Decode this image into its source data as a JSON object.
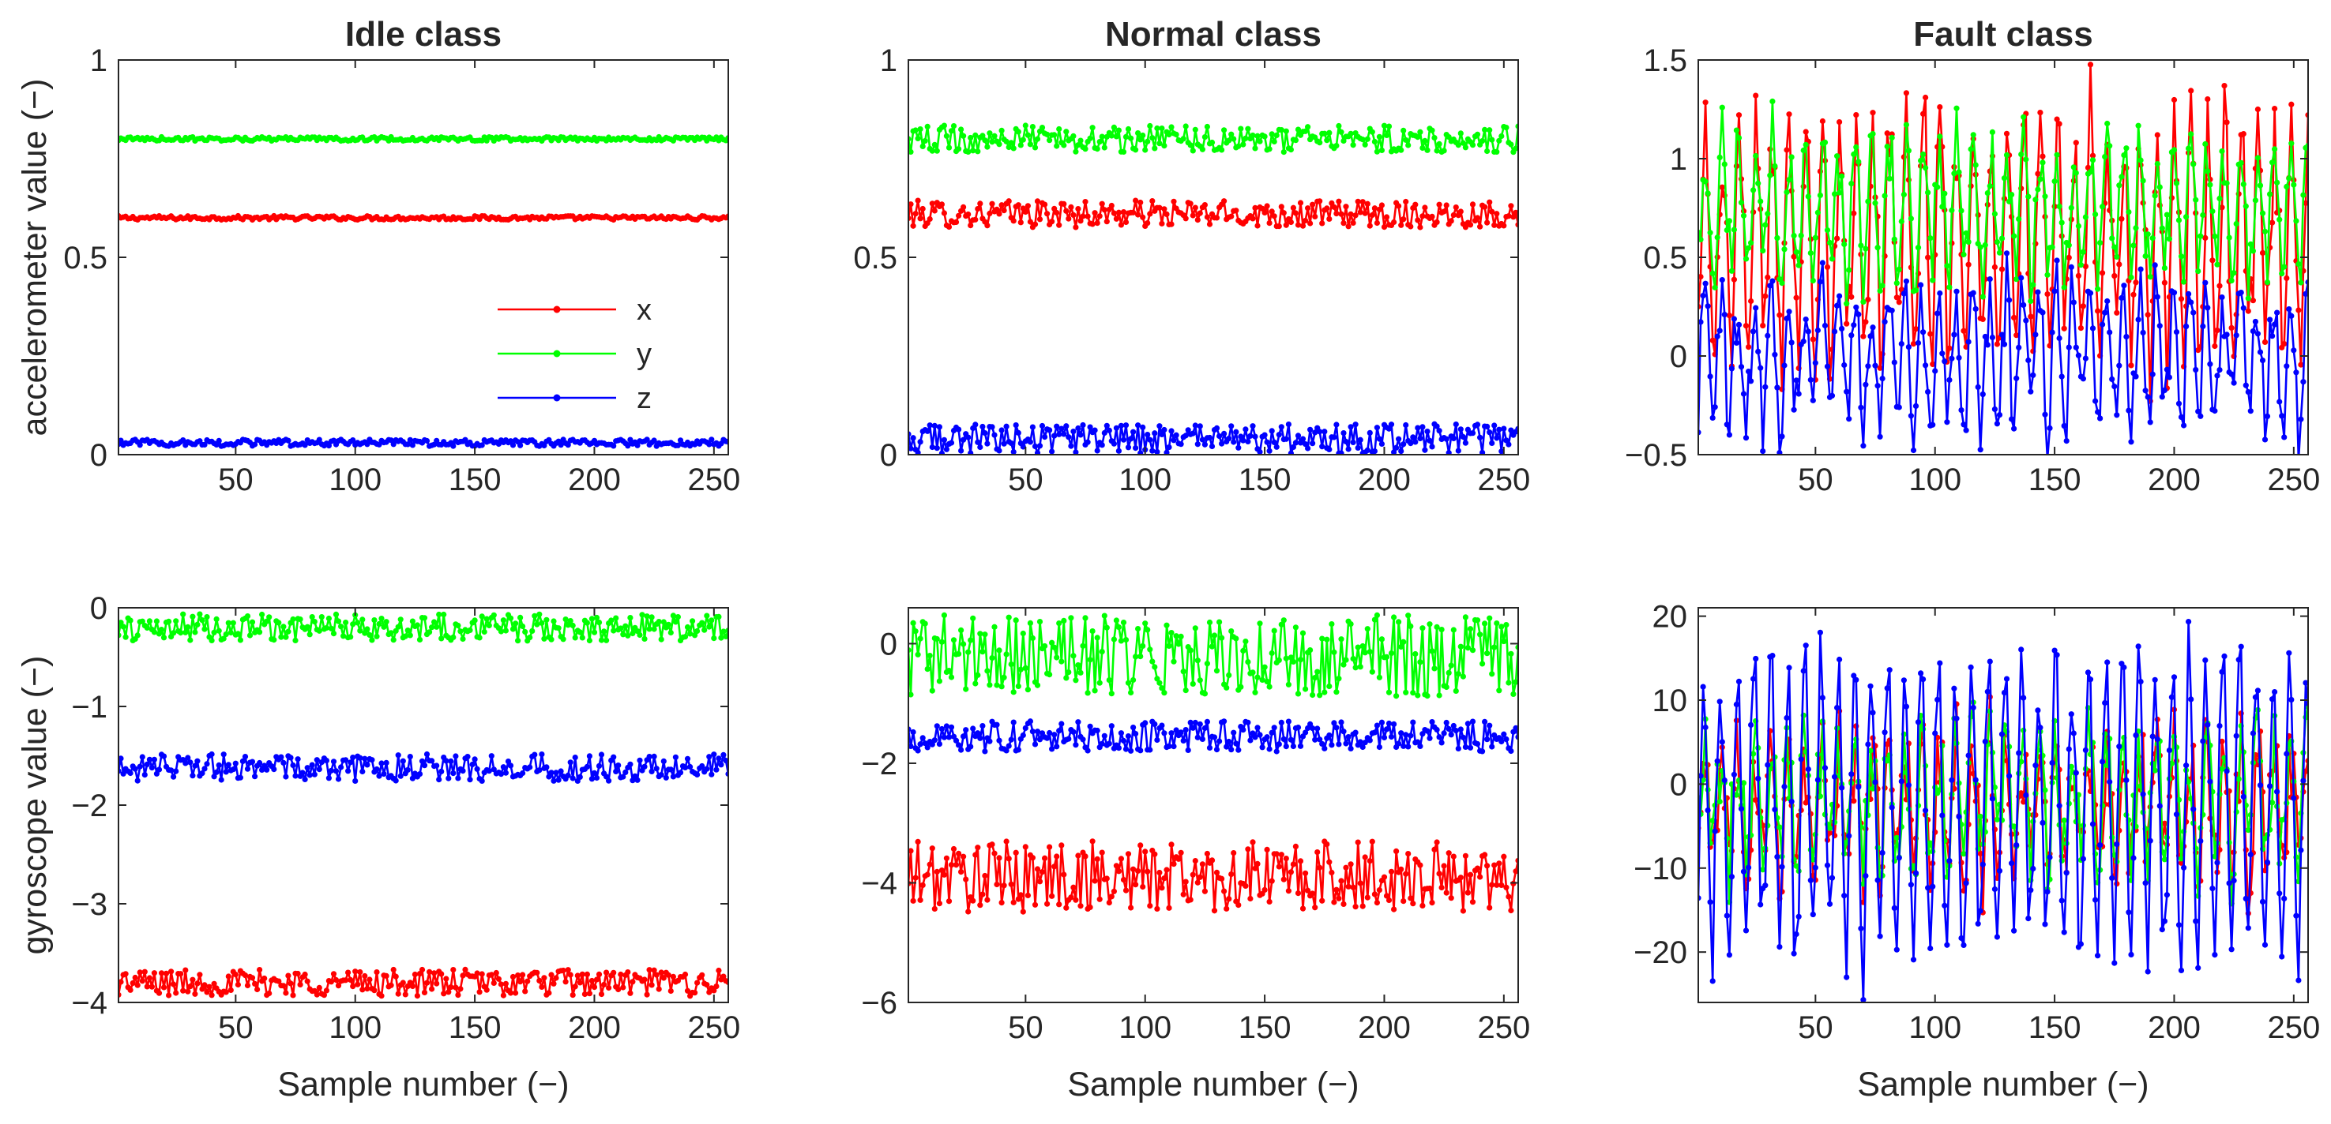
{
  "chart_data": [
    {
      "id": "idle-acc",
      "type": "line",
      "title": "Idle class",
      "xlabel": "",
      "ylabel": "accelerometer value (−)",
      "xlim": [
        1,
        256
      ],
      "ylim": [
        0,
        1
      ],
      "xticks": [
        50,
        100,
        150,
        200,
        250
      ],
      "yticks": [
        0,
        0.5,
        1
      ],
      "yticklabels": [
        "0",
        "0.5",
        "1"
      ],
      "legend": {
        "position": "right-center",
        "entries": [
          "x",
          "y",
          "z"
        ]
      },
      "series": [
        {
          "name": "x",
          "color": "#ff0000",
          "mean": 0.6,
          "noise": 0.003,
          "amplitude": 0,
          "period": 0
        },
        {
          "name": "y",
          "color": "#00ff00",
          "mean": 0.8,
          "noise": 0.003,
          "amplitude": 0,
          "period": 0
        },
        {
          "name": "z",
          "color": "#0000ff",
          "mean": 0.03,
          "noise": 0.005,
          "amplitude": 0,
          "period": 0
        }
      ]
    },
    {
      "id": "normal-acc",
      "type": "line",
      "title": "Normal class",
      "xlabel": "",
      "ylabel": "",
      "xlim": [
        1,
        256
      ],
      "ylim": [
        0,
        1
      ],
      "xticks": [
        50,
        100,
        150,
        200,
        250
      ],
      "yticks": [
        0,
        0.5,
        1
      ],
      "yticklabels": [
        "0",
        "0.5",
        "1"
      ],
      "series": [
        {
          "name": "x",
          "color": "#ff0000",
          "mean": 0.61,
          "noise": 0.02,
          "amplitude": 0,
          "period": 0
        },
        {
          "name": "y",
          "color": "#00ff00",
          "mean": 0.8,
          "noise": 0.02,
          "amplitude": 0,
          "period": 0
        },
        {
          "name": "z",
          "color": "#0000ff",
          "mean": 0.04,
          "noise": 0.022,
          "amplitude": 0,
          "period": 0
        }
      ]
    },
    {
      "id": "fault-acc",
      "type": "line",
      "title": "Fault class",
      "xlabel": "",
      "ylabel": "",
      "xlim": [
        1,
        256
      ],
      "ylim": [
        -0.5,
        1.5
      ],
      "xticks": [
        50,
        100,
        150,
        200,
        250
      ],
      "yticks": [
        -0.5,
        0,
        0.5,
        1,
        1.5
      ],
      "yticklabels": [
        "-0.5",
        "0",
        "0.5",
        "1",
        "1.5"
      ],
      "series": [
        {
          "name": "x",
          "color": "#ff0000",
          "mean": 0.6,
          "noise": 0.12,
          "amplitude": 0.7,
          "period": 7
        },
        {
          "name": "y",
          "color": "#00ff00",
          "mean": 0.75,
          "noise": 0.1,
          "amplitude": 0.4,
          "period": 7
        },
        {
          "name": "z",
          "color": "#0000ff",
          "mean": 0.0,
          "noise": 0.1,
          "amplitude": 0.4,
          "period": 7
        }
      ]
    },
    {
      "id": "idle-gyro",
      "type": "line",
      "title": "",
      "xlabel": "Sample number (−)",
      "ylabel": "gyroscope value (−)",
      "xlim": [
        1,
        256
      ],
      "ylim": [
        -4,
        0
      ],
      "xticks": [
        50,
        100,
        150,
        200,
        250
      ],
      "yticks": [
        -4,
        -3,
        -2,
        -1,
        0
      ],
      "yticklabels": [
        "-4",
        "-3",
        "-2",
        "-1",
        "0"
      ],
      "series": [
        {
          "name": "x",
          "color": "#ff0000",
          "mean": -3.8,
          "noise": 0.08,
          "amplitude": 0,
          "period": 0
        },
        {
          "name": "y",
          "color": "#00ff00",
          "mean": -0.2,
          "noise": 0.08,
          "amplitude": 0,
          "period": 0
        },
        {
          "name": "z",
          "color": "#0000ff",
          "mean": -1.62,
          "noise": 0.08,
          "amplitude": 0,
          "period": 0
        }
      ]
    },
    {
      "id": "normal-gyro",
      "type": "line",
      "title": "",
      "xlabel": "Sample number (−)",
      "ylabel": "",
      "xlim": [
        1,
        256
      ],
      "ylim": [
        -6,
        0.6
      ],
      "xticks": [
        50,
        100,
        150,
        200,
        250
      ],
      "yticks": [
        -6,
        -4,
        -2,
        0
      ],
      "yticklabels": [
        "-6",
        "-4",
        "-2",
        "0"
      ],
      "series": [
        {
          "name": "x",
          "color": "#ff0000",
          "mean": -3.9,
          "noise": 0.35,
          "amplitude": 0,
          "period": 0
        },
        {
          "name": "y",
          "color": "#00ff00",
          "mean": -0.2,
          "noise": 0.4,
          "amplitude": 0,
          "period": 0
        },
        {
          "name": "z",
          "color": "#0000ff",
          "mean": -1.55,
          "noise": 0.15,
          "amplitude": 0,
          "period": 0
        }
      ]
    },
    {
      "id": "fault-gyro",
      "type": "line",
      "title": "",
      "xlabel": "Sample number (−)",
      "ylabel": "",
      "xlim": [
        1,
        256
      ],
      "ylim": [
        -26,
        21
      ],
      "xticks": [
        50,
        100,
        150,
        200,
        250
      ],
      "yticks": [
        -20,
        -10,
        0,
        10,
        20
      ],
      "yticklabels": [
        "-20",
        "-10",
        "0",
        "10",
        "20"
      ],
      "series": [
        {
          "name": "x",
          "color": "#ff0000",
          "mean": -3,
          "noise": 3,
          "amplitude": 9,
          "period": 7
        },
        {
          "name": "y",
          "color": "#00ff00",
          "mean": -2,
          "noise": 3,
          "amplitude": 8,
          "period": 7
        },
        {
          "name": "z",
          "color": "#0000ff",
          "mean": -2.5,
          "noise": 2,
          "amplitude": 21,
          "period": 7
        }
      ]
    }
  ]
}
